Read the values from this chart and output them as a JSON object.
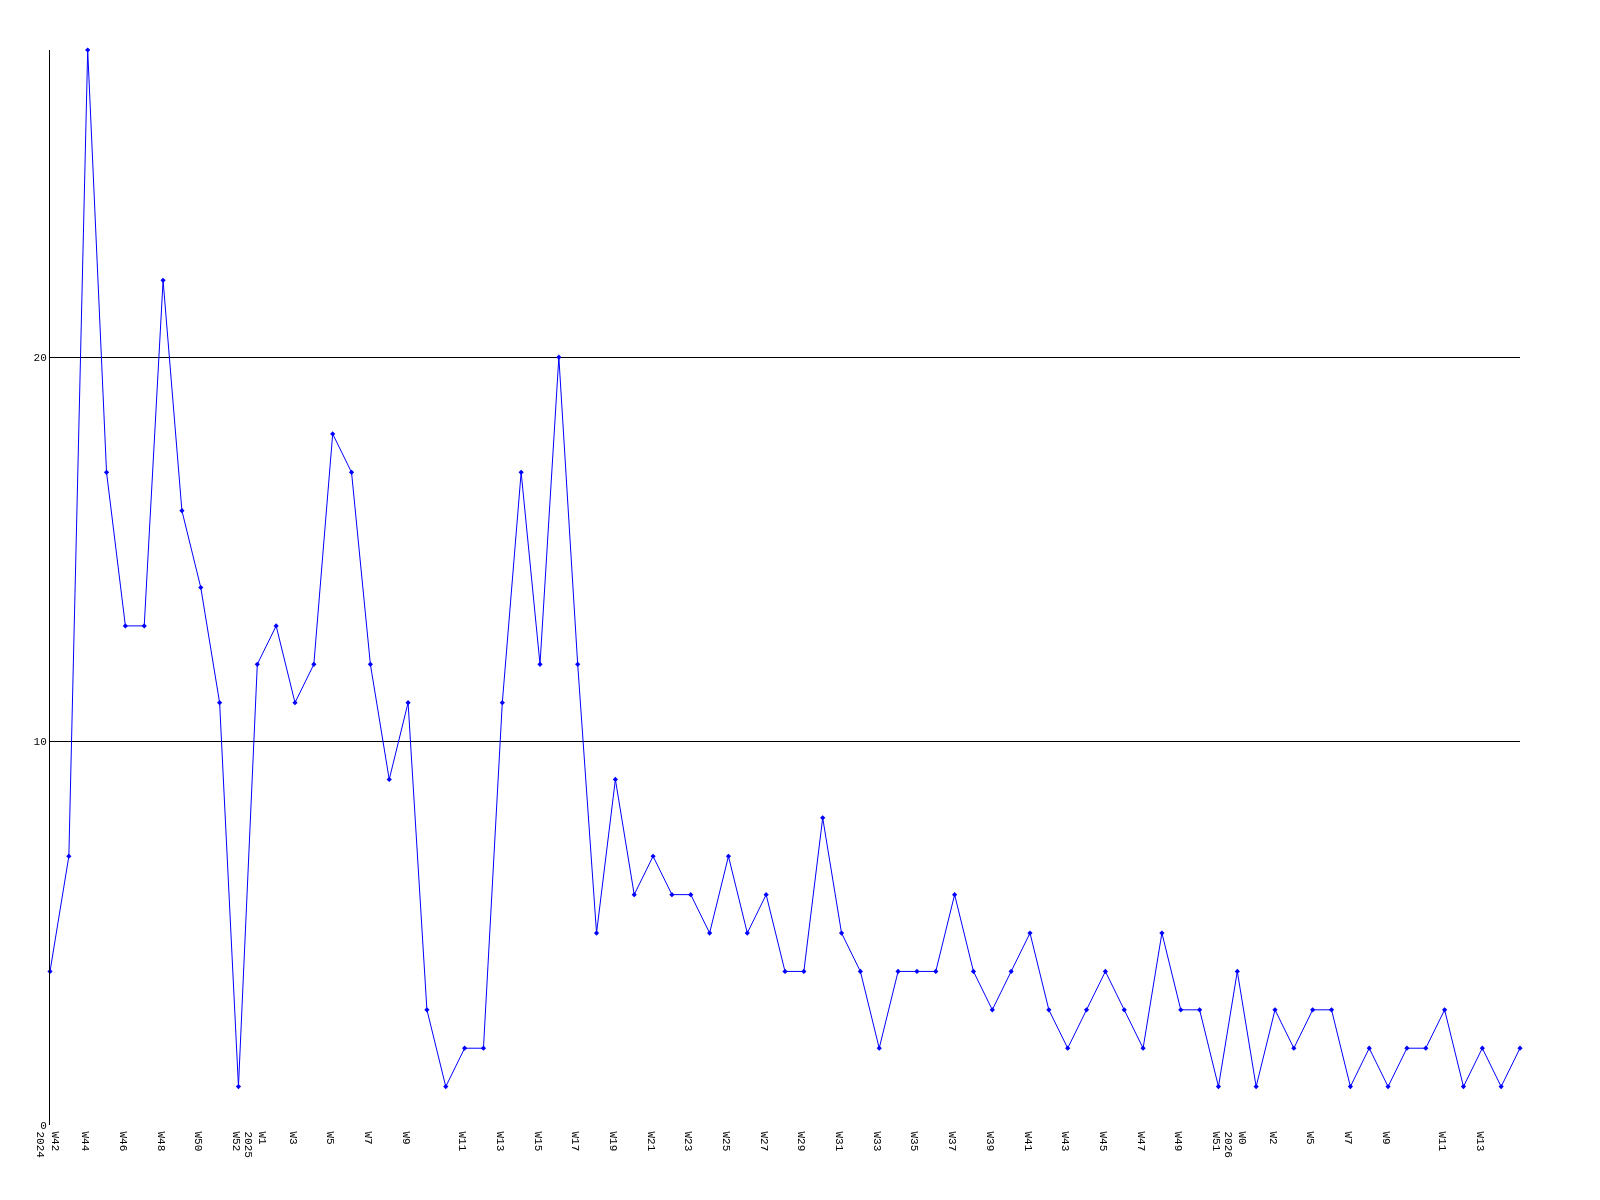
{
  "chart_data": {
    "type": "line",
    "categories": [
      "W42\n2024",
      null,
      "W44",
      null,
      "W46",
      null,
      "W48",
      null,
      "W50",
      null,
      "W52",
      "W1\n2025",
      null,
      "W3",
      null,
      "W5",
      null,
      "W7",
      null,
      "W9",
      null,
      null,
      "W11",
      null,
      "W13",
      null,
      "W15",
      null,
      "W17",
      null,
      "W19",
      null,
      "W21",
      null,
      "W23",
      null,
      "W25",
      null,
      "W27",
      null,
      "W29",
      null,
      "W31",
      null,
      "W33",
      null,
      "W35",
      null,
      "W37",
      null,
      "W39",
      null,
      "W41",
      null,
      "W43",
      null,
      "W45",
      null,
      "W47",
      null,
      "W49",
      null,
      "W51",
      "W0\n2026",
      null,
      "W2",
      null,
      "W5",
      null,
      "W7",
      null,
      "W9",
      null,
      null,
      "W11",
      null,
      "W13",
      null,
      null
    ],
    "series": [
      {
        "color": "#0000ff",
        "values": [
          4,
          7,
          28,
          17,
          13,
          13,
          22,
          16,
          14,
          11,
          1,
          12,
          13,
          11,
          12,
          18,
          17,
          12,
          9,
          11,
          3,
          1,
          2,
          2,
          11,
          17,
          12,
          20,
          12,
          5,
          9,
          6,
          7,
          6,
          6,
          5,
          7,
          5,
          6,
          4,
          4,
          8,
          5,
          4,
          2,
          4,
          4,
          4,
          6,
          4,
          3,
          4,
          5,
          3,
          2,
          3,
          4,
          3,
          2,
          5,
          3,
          3,
          1,
          4,
          1,
          3,
          2,
          3,
          3,
          1,
          2,
          1,
          2,
          2,
          3,
          1,
          2,
          1,
          2
        ]
      }
    ],
    "ylim": [
      0,
      28
    ],
    "yticks": [
      0,
      10,
      20
    ],
    "grid": "y",
    "marker": "diamond",
    "line_style": "solid",
    "legend": false
  }
}
